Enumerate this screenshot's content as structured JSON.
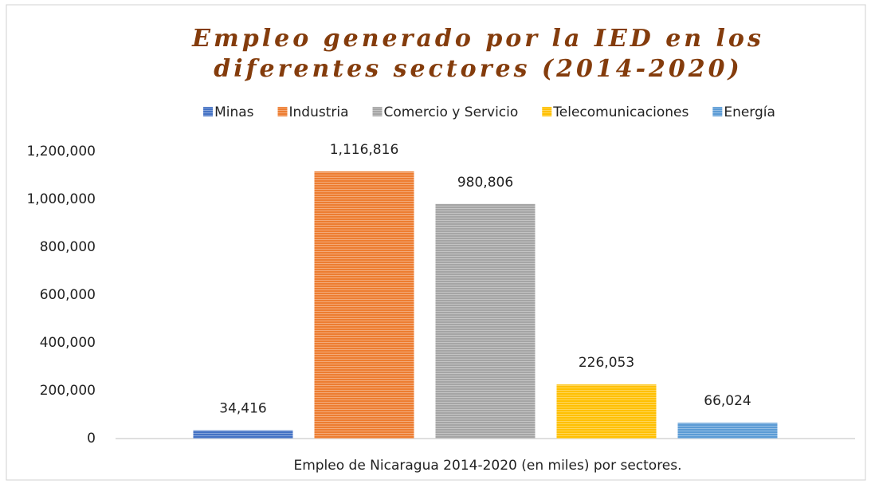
{
  "chart_data": {
    "type": "bar",
    "title": [
      "Empleo generado por la IED en los",
      "diferentes sectores (2014-2020)"
    ],
    "xlabel": "Empleo de Nicaragua 2014-2020 (en miles) por sectores.",
    "series": [
      {
        "name": "Minas",
        "color": "#4472c4",
        "values": [
          34416
        ],
        "value_labels": [
          "34,416"
        ]
      },
      {
        "name": "Industria",
        "color": "#ed7d31",
        "values": [
          1116816
        ],
        "value_labels": [
          "1,116,816"
        ]
      },
      {
        "name": "Comercio y Servicio",
        "color": "#a5a5a5",
        "values": [
          980806
        ],
        "value_labels": [
          "980,806"
        ]
      },
      {
        "name": "Telecomunicaciones",
        "color": "#ffc000",
        "values": [
          226053
        ],
        "value_labels": [
          "226,053"
        ]
      },
      {
        "name": "Energía",
        "color": "#5b9bd5",
        "values": [
          66024
        ],
        "value_labels": [
          "66,024"
        ]
      }
    ],
    "ylim": [
      0,
      1200000
    ],
    "yticks": [
      0,
      {
        "value": 200000,
        "label": "200,000"
      },
      {
        "value": 400000,
        "label": "400,000"
      },
      {
        "value": 600000,
        "label": "600,000"
      },
      {
        "value": 800000,
        "label": "800,000"
      },
      {
        "value": 1000000,
        "label": "1,000,000"
      },
      {
        "value": 1200000,
        "label": "1,200,000"
      }
    ],
    "grid": false,
    "legend": "top"
  }
}
